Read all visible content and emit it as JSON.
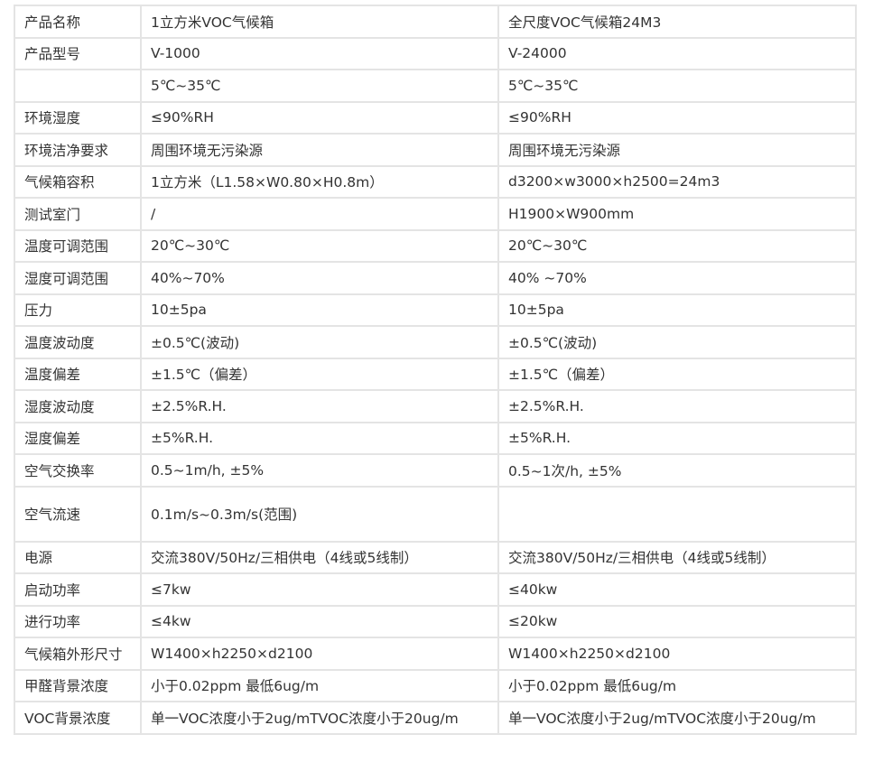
{
  "table": {
    "rows": [
      [
        "产品名称",
        "1立方米VOC气候箱",
        "全尺度VOC气候箱24M3"
      ],
      [
        "产品型号",
        "V-1000",
        "V-24000"
      ],
      [
        null,
        "5℃~35℃",
        "5℃~35℃"
      ],
      [
        "环境湿度",
        "≤90%RH",
        "≤90%RH"
      ],
      [
        "环境洁净要求",
        "周围环境无污染源",
        "周围环境无污染源"
      ],
      [
        "气候箱容积",
        "1立方米（L1.58×W0.80×H0.8m）",
        "d3200×w3000×h2500=24m3"
      ],
      [
        "测试室门",
        "/",
        "H1900×W900mm"
      ],
      [
        "温度可调范围",
        "20℃~30℃",
        "20℃~30℃"
      ],
      [
        "湿度可调范围",
        "40%~70%",
        "40% ~70%"
      ],
      [
        "压力",
        "10±5pa",
        "10±5pa"
      ],
      [
        "温度波动度",
        "±0.5℃(波动)",
        "±0.5℃(波动)"
      ],
      [
        "温度偏差",
        "±1.5℃（偏差）",
        "±1.5℃（偏差）"
      ],
      [
        "湿度波动度",
        "±2.5%R.H.",
        "±2.5%R.H."
      ],
      [
        "湿度偏差",
        "±5%R.H.",
        "±5%R.H."
      ],
      [
        "空气交换率",
        "0.5~1m/h, ±5%",
        "0.5~1次/h, ±5%"
      ],
      [
        "空气流速",
        "0.1m/s~0.3m/s(范围)",
        null
      ],
      [
        "电源",
        "交流380V/50Hz/三相供电（4线或5线制）",
        "交流380V/50Hz/三相供电（4线或5线制）"
      ],
      [
        "启动功率",
        "≤7kw",
        "≤40kw"
      ],
      [
        "进行功率",
        "≤4kw",
        "≤20kw"
      ],
      [
        "气候箱外形尺寸",
        "W1400×h2250×d2100",
        "W1400×h2250×d2100"
      ],
      [
        "甲醛背景浓度",
        "小于0.02ppm 最低6ug/m",
        "小于0.02ppm 最低6ug/m"
      ],
      [
        "VOC背景浓度",
        "单一VOC浓度小于2ug/mTVOC浓度小于20ug/m",
        "单一VOC浓度小于2ug/mTVOC浓度小于20ug/m"
      ]
    ]
  }
}
